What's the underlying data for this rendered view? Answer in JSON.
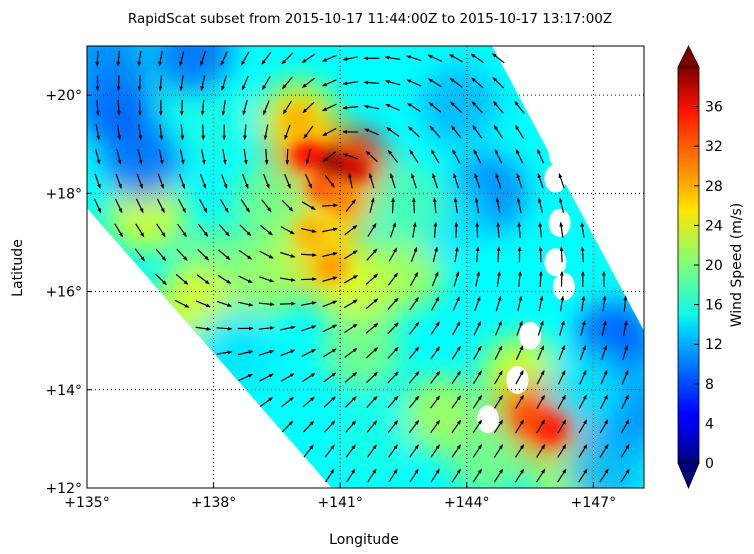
{
  "chart_data": {
    "type": "heatmap",
    "title": "RapidScat subset from 2015-10-17 11:44:00Z to 2015-10-17 13:17:00Z",
    "xlabel": "Longitude",
    "ylabel": "Latitude",
    "xlim": [
      135,
      148.2
    ],
    "ylim": [
      12,
      21
    ],
    "x_ticks": [
      135,
      138,
      141,
      144,
      147
    ],
    "y_ticks": [
      12,
      14,
      16,
      18,
      20
    ],
    "x_tick_labels": [
      "+135°",
      "+138°",
      "+141°",
      "+144°",
      "+147°"
    ],
    "y_tick_labels": [
      "+12°",
      "+14°",
      "+16°",
      "+18°",
      "+20°"
    ],
    "grid": "dotted",
    "colorbar": {
      "label": "Wind Speed (m/s)",
      "min": 0,
      "max": 40,
      "ticks": [
        0,
        4,
        8,
        12,
        16,
        20,
        24,
        28,
        32,
        36
      ],
      "tick_labels": [
        "0",
        "4",
        "8",
        "12",
        "16",
        "20",
        "24",
        "28",
        "32",
        "36"
      ],
      "colormap": "jet",
      "extend": "both"
    },
    "storm_center": {
      "lon": 140.9,
      "lat": 18.3
    },
    "swath_polygon": [
      {
        "lon": 135.0,
        "lat": 21.0
      },
      {
        "lon": 144.6,
        "lat": 21.0
      },
      {
        "lon": 148.2,
        "lat": 15.2
      },
      {
        "lon": 148.2,
        "lat": 12.0
      },
      {
        "lon": 140.8,
        "lat": 12.0
      },
      {
        "lon": 135.0,
        "lat": 17.7
      }
    ],
    "wind_features": [
      {
        "lon": 140.8,
        "lat": 18.6,
        "speed": 38
      },
      {
        "lon": 140.2,
        "lat": 18.8,
        "speed": 33
      },
      {
        "lon": 141.3,
        "lat": 18.5,
        "speed": 35
      },
      {
        "lon": 140.6,
        "lat": 18.1,
        "speed": 30
      },
      {
        "lon": 140.0,
        "lat": 19.5,
        "speed": 26
      },
      {
        "lon": 141.0,
        "lat": 17.9,
        "speed": 28
      },
      {
        "lon": 140.3,
        "lat": 17.2,
        "speed": 26
      },
      {
        "lon": 140.8,
        "lat": 16.5,
        "speed": 27
      },
      {
        "lon": 141.5,
        "lat": 16.0,
        "speed": 24
      },
      {
        "lon": 139.2,
        "lat": 16.3,
        "speed": 22
      },
      {
        "lon": 142.5,
        "lat": 16.4,
        "speed": 22
      },
      {
        "lon": 138.0,
        "lat": 16.5,
        "speed": 20
      },
      {
        "lon": 136.4,
        "lat": 17.6,
        "speed": 24
      },
      {
        "lon": 137.5,
        "lat": 15.7,
        "speed": 24
      },
      {
        "lon": 141.5,
        "lat": 14.8,
        "speed": 20
      },
      {
        "lon": 143.4,
        "lat": 13.5,
        "speed": 22
      },
      {
        "lon": 145.3,
        "lat": 14.3,
        "speed": 24
      },
      {
        "lon": 145.5,
        "lat": 13.4,
        "speed": 30
      },
      {
        "lon": 146.0,
        "lat": 13.2,
        "speed": 32
      },
      {
        "lon": 146.5,
        "lat": 12.2,
        "speed": 22
      },
      {
        "lon": 144.5,
        "lat": 12.6,
        "speed": 20
      },
      {
        "lon": 136.5,
        "lat": 20.3,
        "speed": 16
      },
      {
        "lon": 138.0,
        "lat": 19.5,
        "speed": 16
      },
      {
        "lon": 135.7,
        "lat": 19.8,
        "speed": 8
      },
      {
        "lon": 135.5,
        "lat": 20.7,
        "speed": 10
      },
      {
        "lon": 137.5,
        "lat": 20.8,
        "speed": 9
      },
      {
        "lon": 136.3,
        "lat": 18.7,
        "speed": 9
      },
      {
        "lon": 143.8,
        "lat": 19.8,
        "speed": 12
      },
      {
        "lon": 144.5,
        "lat": 18.0,
        "speed": 10
      },
      {
        "lon": 143.5,
        "lat": 17.5,
        "speed": 14
      },
      {
        "lon": 147.5,
        "lat": 15.0,
        "speed": 8
      },
      {
        "lon": 147.8,
        "lat": 13.5,
        "speed": 10
      },
      {
        "lon": 147.3,
        "lat": 12.4,
        "speed": 12
      },
      {
        "lon": 146.8,
        "lat": 14.0,
        "speed": 14
      },
      {
        "lon": 141.8,
        "lat": 13.0,
        "speed": 16
      },
      {
        "lon": 138.5,
        "lat": 14.8,
        "speed": 14
      },
      {
        "lon": 142.6,
        "lat": 17.8,
        "speed": 18
      },
      {
        "lon": 139.4,
        "lat": 17.8,
        "speed": 20
      }
    ],
    "land_masks": [
      {
        "lon": 146.2,
        "lat": 18.8
      },
      {
        "lon": 146.1,
        "lat": 18.3
      },
      {
        "lon": 146.2,
        "lat": 17.4
      },
      {
        "lon": 146.1,
        "lat": 16.6
      },
      {
        "lon": 146.3,
        "lat": 16.1
      },
      {
        "lon": 145.5,
        "lat": 15.1
      },
      {
        "lon": 145.2,
        "lat": 14.2
      },
      {
        "lon": 144.5,
        "lat": 13.4
      }
    ],
    "vector_field": "cyclonic circulation about storm_center; southwesterly flow in southeast"
  }
}
